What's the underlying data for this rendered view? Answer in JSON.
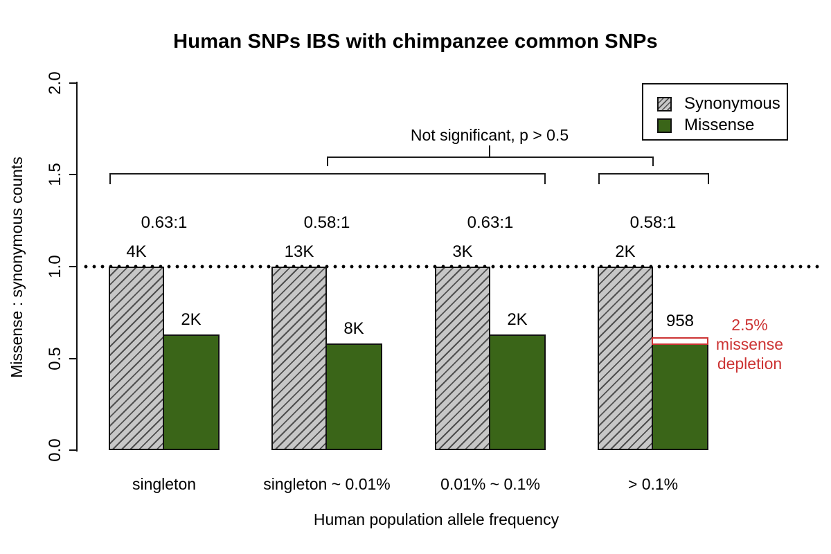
{
  "title": "Human SNPs IBS with chimpanzee common SNPs",
  "y_axis": {
    "label": "Missense : synonymous counts",
    "ticks": [
      "2.0",
      "1.5",
      "1.0",
      "0.5",
      "0.0"
    ]
  },
  "x_axis": {
    "label": "Human population allele frequency"
  },
  "legend": {
    "items": [
      {
        "label": "Synonymous",
        "swatch": "gray-hatched"
      },
      {
        "label": "Missense",
        "swatch": "dark-green"
      }
    ]
  },
  "annotations": {
    "not_significant": "Not significant, p > 0.5",
    "depletion_lines": [
      "2.5%",
      "missense",
      "depletion"
    ]
  },
  "colors": {
    "missense_green": "#3a6518",
    "hatch_background": "#c7c7c7",
    "hatch_line": "#4f4f4f",
    "depletion_red": "#cc3333",
    "axis_black": "#111111"
  },
  "chart_data": {
    "type": "bar",
    "title": "Human SNPs IBS with chimpanzee common SNPs",
    "xlabel": "Human population allele frequency",
    "ylabel": "Missense : synonymous counts",
    "ylim": [
      0,
      2
    ],
    "yticks": [
      0.0,
      0.5,
      1.0,
      1.5,
      2.0
    ],
    "grid": false,
    "reference_line_y": 1.0,
    "legend_position": "top-right",
    "categories": [
      "singleton",
      "singleton ~ 0.01%",
      "0.01% ~ 0.1%",
      "> 0.1%"
    ],
    "series": [
      {
        "name": "Synonymous",
        "style": "gray-hatched",
        "values": [
          1.0,
          1.0,
          1.0,
          1.0
        ],
        "count_labels": [
          "4K",
          "13K",
          "3K",
          "2K"
        ]
      },
      {
        "name": "Missense",
        "style": "dark-green",
        "values": [
          0.63,
          0.58,
          0.63,
          0.58
        ],
        "count_labels": [
          "2K",
          "8K",
          "2K",
          "958"
        ]
      }
    ],
    "ratio_labels": [
      "0.63:1",
      "0.58:1",
      "0.63:1",
      "0.58:1"
    ],
    "significance_note": "Not significant, p > 0.5",
    "depletion_annotation": "2.5% missense depletion"
  }
}
